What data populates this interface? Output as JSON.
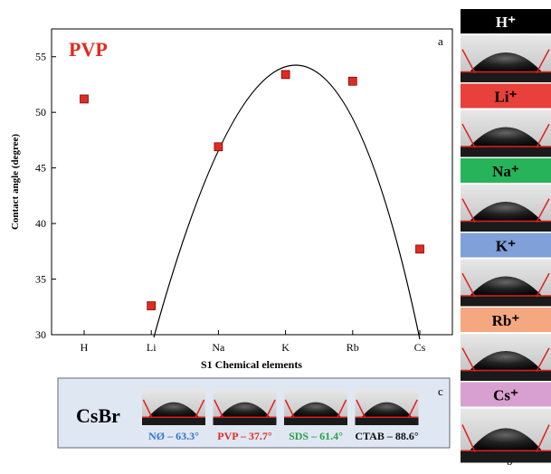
{
  "chart_data": {
    "type": "scatter",
    "title": "PVP",
    "panel_label": "a",
    "y_label": "Contact angle (degree)",
    "x_label": "S1 Chemical elements",
    "categories": [
      "H",
      "Li",
      "Na",
      "K",
      "Rb",
      "Cs"
    ],
    "values": [
      51.2,
      32.6,
      46.9,
      53.4,
      52.8,
      37.7
    ],
    "color": "#e02b20",
    "ylim": [
      30,
      57.5
    ],
    "yticks": [
      30,
      35,
      40,
      45,
      50,
      55
    ]
  },
  "panel_b": {
    "label": "b",
    "ions": [
      {
        "text": "H⁺",
        "color": "#000000"
      },
      {
        "text": "Li⁺",
        "color": "#e8403a"
      },
      {
        "text": "Na⁺",
        "color": "#27b35a"
      },
      {
        "text": "K⁺",
        "color": "#7fa0d8"
      },
      {
        "text": "Rb⁺",
        "color": "#f5a77f"
      },
      {
        "text": "Cs⁺",
        "color": "#d8a0d0"
      }
    ]
  },
  "panel_c": {
    "label": "c",
    "title": "CsBr",
    "items": [
      {
        "text": "NØ – 63.3°",
        "color": "#2e75c6"
      },
      {
        "text": "PVP – 37.7°",
        "color": "#e02b20"
      },
      {
        "text": "SDS – 61.4°",
        "color": "#27a24a"
      },
      {
        "text": "CTAB – 88.6°",
        "color": "#111111"
      }
    ]
  }
}
